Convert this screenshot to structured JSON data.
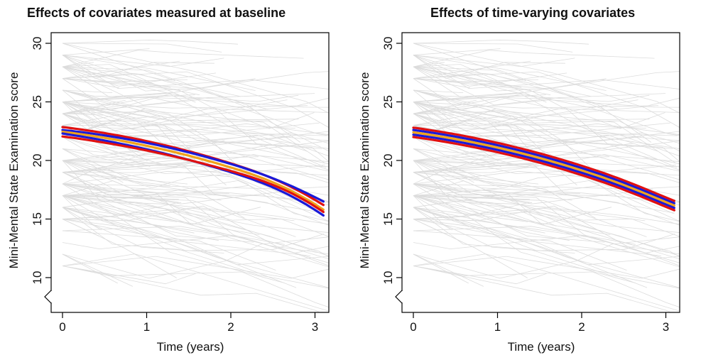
{
  "chart_data": [
    {
      "type": "line",
      "title": "Effects of covariates measured at baseline",
      "xlabel": "Time (years)",
      "ylabel": "Mini-Mental State Examination score",
      "xlim": [
        0,
        3
      ],
      "ylim": [
        10,
        30
      ],
      "x_ticks": [
        "0",
        "1",
        "2",
        "3"
      ],
      "y_ticks": [
        "10",
        "15",
        "20",
        "25",
        "30"
      ],
      "y_axis_break": true,
      "grid": false,
      "legend": "none",
      "background_trajectories": "individual patient trajectories (light grey)",
      "series": [
        {
          "color": "#e01010",
          "x": [
            0,
            1,
            2,
            3.1
          ],
          "y": [
            22.85,
            21.65,
            19.75,
            16.2
          ]
        },
        {
          "color": "#1a1ad8",
          "x": [
            0,
            1,
            2,
            3.1
          ],
          "y": [
            22.6,
            21.5,
            19.7,
            16.5
          ]
        },
        {
          "color": "#f0a21a",
          "x": [
            0,
            1,
            2,
            3.1
          ],
          "y": [
            22.45,
            21.25,
            19.4,
            15.8
          ]
        },
        {
          "color": "#1a1ad8",
          "x": [
            0,
            1,
            2,
            3.1
          ],
          "y": [
            22.3,
            20.95,
            19.0,
            15.3
          ]
        },
        {
          "color": "#e01010",
          "x": [
            0,
            1,
            2,
            3.1
          ],
          "y": [
            22.05,
            20.85,
            19.1,
            15.6
          ]
        }
      ]
    },
    {
      "type": "line",
      "title": "Effects of time-varying covariates",
      "xlabel": "Time (years)",
      "ylabel": "Mini-Mental State Examination score",
      "xlim": [
        0,
        3
      ],
      "ylim": [
        10,
        30
      ],
      "x_ticks": [
        "0",
        "1",
        "2",
        "3"
      ],
      "y_ticks": [
        "10",
        "15",
        "20",
        "25",
        "30"
      ],
      "y_axis_break": true,
      "grid": false,
      "legend": "none",
      "background_trajectories": "individual patient trajectories (light grey)",
      "series": [
        {
          "color": "#e01010",
          "x": [
            0,
            1,
            2,
            3.1
          ],
          "y": [
            22.8,
            21.5,
            19.55,
            16.55
          ]
        },
        {
          "color": "#1a1ad8",
          "x": [
            0,
            1,
            2,
            3.1
          ],
          "y": [
            22.6,
            21.3,
            19.35,
            16.35
          ]
        },
        {
          "color": "#f0a21a",
          "x": [
            0,
            1,
            2,
            3.1
          ],
          "y": [
            22.4,
            21.1,
            19.15,
            16.15
          ]
        },
        {
          "color": "#1a1ad8",
          "x": [
            0,
            1,
            2,
            3.1
          ],
          "y": [
            22.2,
            20.9,
            18.95,
            15.95
          ]
        },
        {
          "color": "#e01010",
          "x": [
            0,
            1,
            2,
            3.1
          ],
          "y": [
            22.0,
            20.7,
            18.75,
            15.75
          ]
        }
      ]
    }
  ]
}
